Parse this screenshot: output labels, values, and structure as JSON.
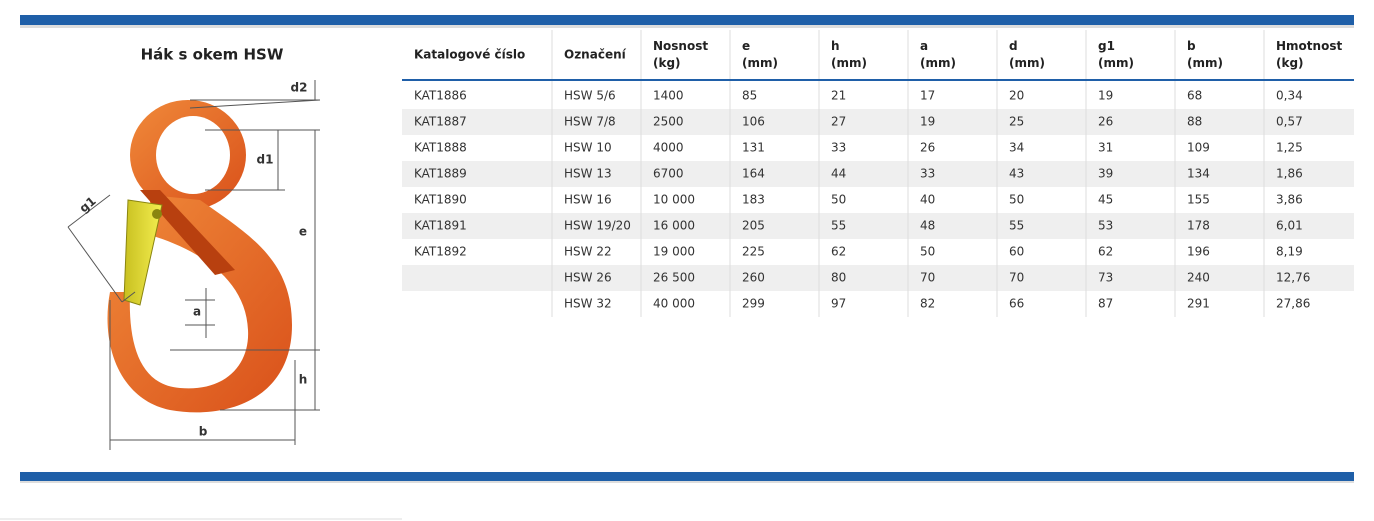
{
  "title": "Hák s okem HSW",
  "diagram": {
    "labels": {
      "d2": "d2",
      "d1": "d1",
      "g1": "g1",
      "e": "e",
      "a": "a",
      "h": "h",
      "b": "b"
    }
  },
  "table": {
    "headers": [
      [
        "Katalogové číslo"
      ],
      [
        "Označení"
      ],
      [
        "Nosnost",
        "(kg)"
      ],
      [
        "e",
        "(mm)"
      ],
      [
        "h",
        "(mm)"
      ],
      [
        "a",
        "(mm)"
      ],
      [
        "d",
        "(mm)"
      ],
      [
        "g1",
        "(mm)"
      ],
      [
        "b",
        "(mm)"
      ],
      [
        "Hmotnost",
        "(kg)"
      ]
    ],
    "rows": [
      [
        "KAT1886",
        "HSW 5/6",
        "1400",
        "85",
        "21",
        "17",
        "20",
        "19",
        "68",
        "0,34"
      ],
      [
        "KAT1887",
        "HSW 7/8",
        "2500",
        "106",
        "27",
        "19",
        "25",
        "26",
        "88",
        "0,57"
      ],
      [
        "KAT1888",
        "HSW 10",
        "4000",
        "131",
        "33",
        "26",
        "34",
        "31",
        "109",
        "1,25"
      ],
      [
        "KAT1889",
        "HSW 13",
        "6700",
        "164",
        "44",
        "33",
        "43",
        "39",
        "134",
        "1,86"
      ],
      [
        "KAT1890",
        "HSW 16",
        "10 000",
        "183",
        "50",
        "40",
        "50",
        "45",
        "155",
        "3,86"
      ],
      [
        "KAT1891",
        "HSW 19/20",
        "16 000",
        "205",
        "55",
        "48",
        "55",
        "53",
        "178",
        "6,01"
      ],
      [
        "KAT1892",
        "HSW 22",
        "19 000",
        "225",
        "62",
        "50",
        "60",
        "62",
        "196",
        "8,19"
      ],
      [
        null,
        "HSW 26",
        "26 500",
        "260",
        "80",
        "70",
        "70",
        "73",
        "240",
        "12,76"
      ],
      [
        null,
        "HSW 32",
        "40 000",
        "299",
        "97",
        "82",
        "66",
        "87",
        "291",
        "27,86"
      ]
    ]
  }
}
